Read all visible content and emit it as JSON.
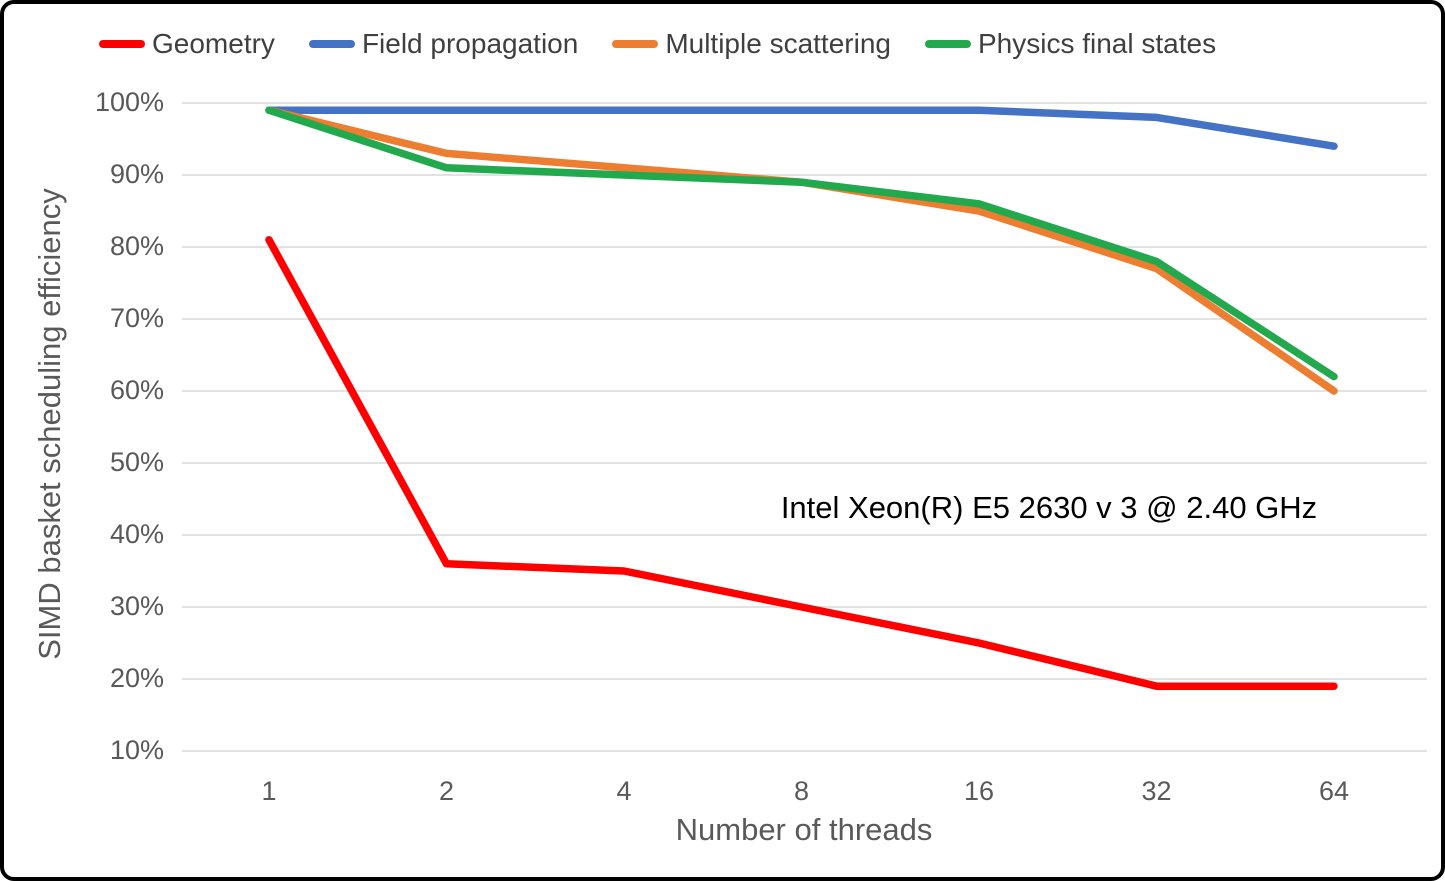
{
  "chart_data": {
    "type": "line",
    "categories": [
      "1",
      "2",
      "4",
      "8",
      "16",
      "32",
      "64"
    ],
    "series": [
      {
        "name": "Geometry",
        "color": "#fe0000",
        "values": [
          81,
          36,
          35,
          30,
          25,
          19,
          19
        ]
      },
      {
        "name": "Field propagation",
        "color": "#4472c4",
        "values": [
          99,
          99,
          99,
          99,
          99,
          98,
          94
        ]
      },
      {
        "name": "Multiple scattering",
        "color": "#ed7d31",
        "values": [
          99,
          93,
          91,
          89,
          85,
          77,
          60
        ]
      },
      {
        "name": "Physics final states",
        "color": "#22a84d",
        "values": [
          99,
          91,
          90,
          89,
          86,
          78,
          62
        ]
      }
    ],
    "xlabel": "Number of threads",
    "ylabel": "SIMD basket scheduling efficiency",
    "annotation": "Intel Xeon(R) E5 2630 v 3 @ 2.40 GHz",
    "y_ticks": [
      "100%",
      "90%",
      "80%",
      "70%",
      "60%",
      "50%",
      "40%",
      "30%",
      "20%",
      "10%"
    ],
    "ylim": [
      10,
      100
    ],
    "ytick_step": 10,
    "grid": true,
    "legend_position": "top",
    "gridline_color": "#d9d9d9",
    "tick_color": "#595959",
    "annotation_color": "#000000"
  }
}
